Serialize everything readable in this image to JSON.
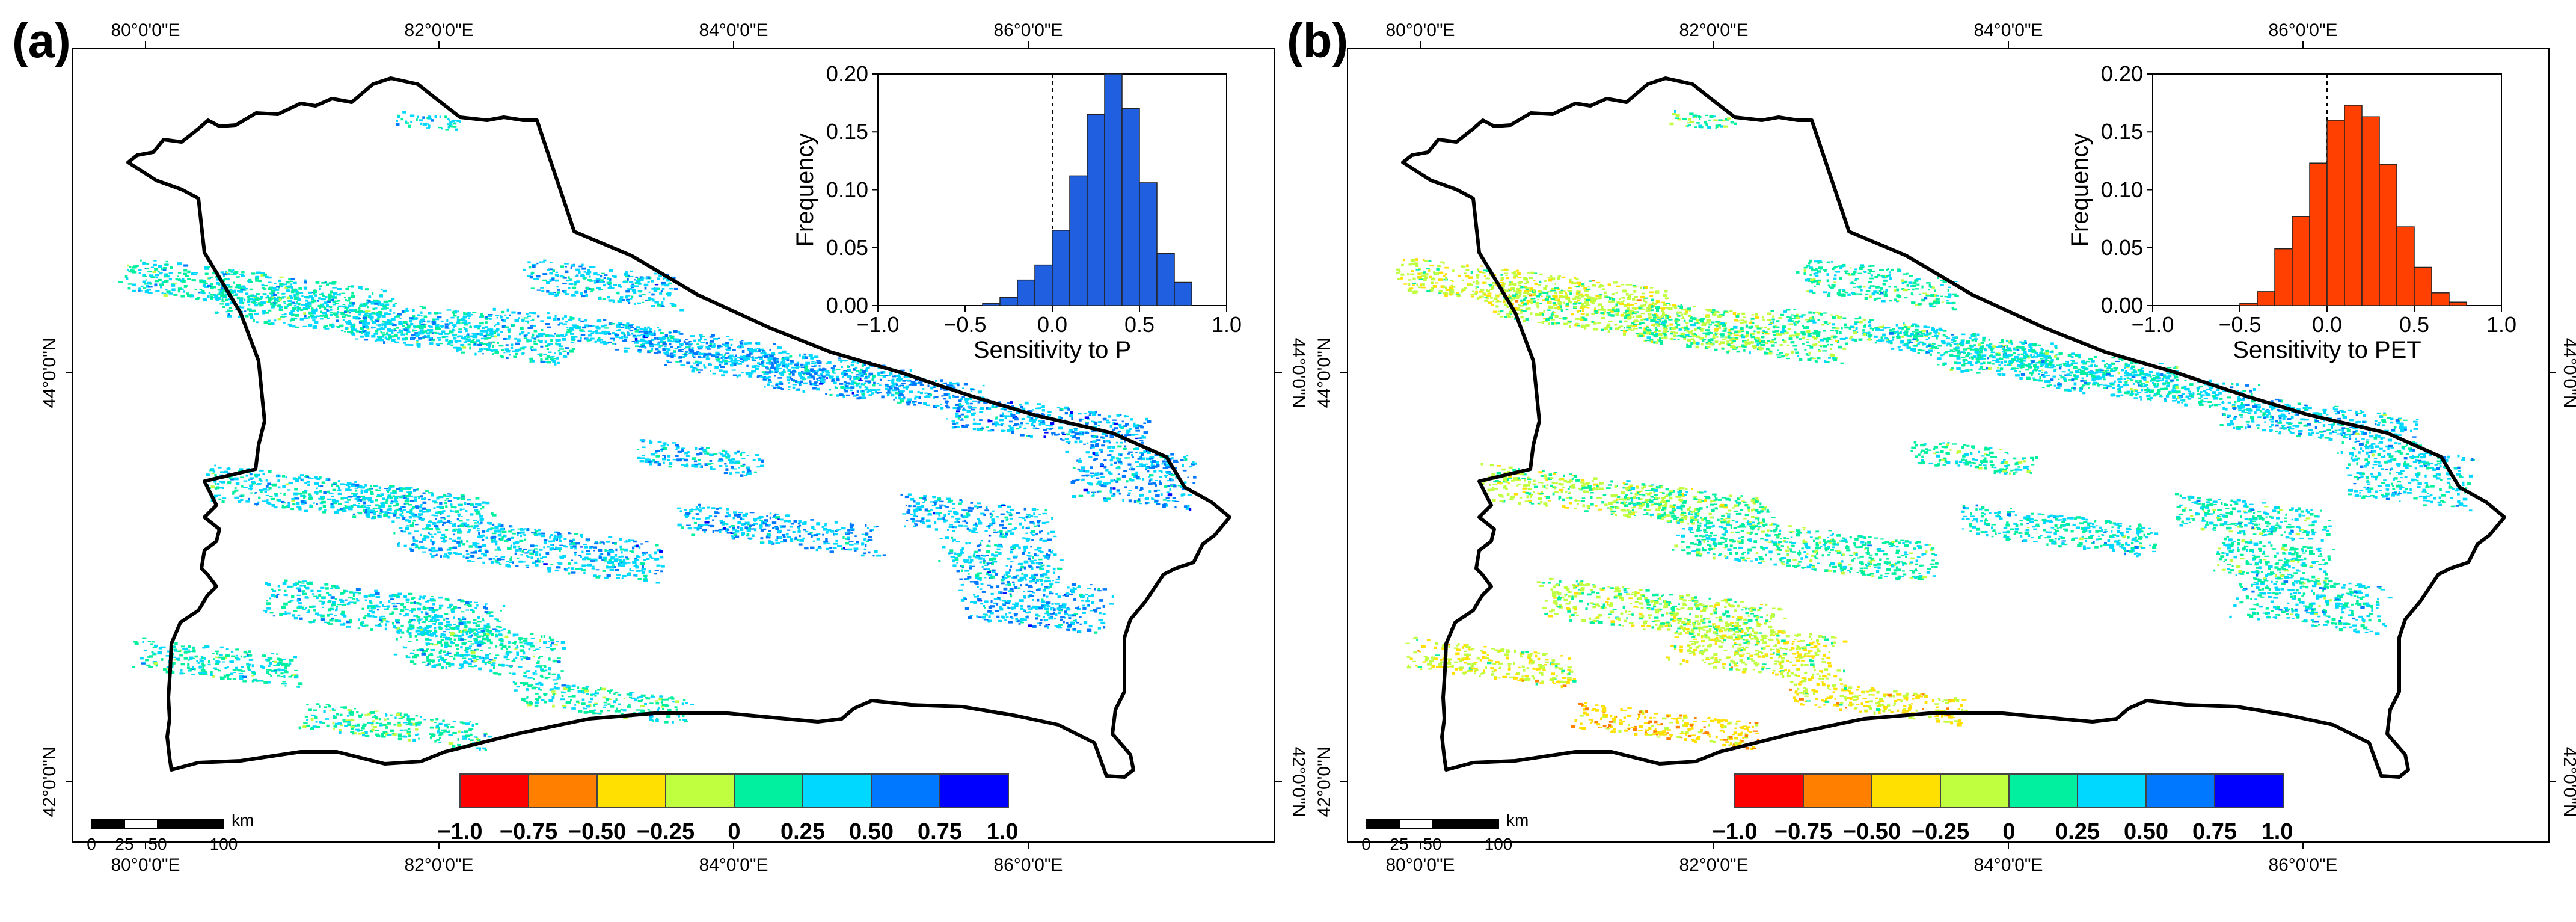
{
  "panels": [
    {
      "id": "a",
      "label": "(a)",
      "lon_ticks": [
        "80°0'0\"E",
        "82°0'0\"E",
        "84°0'0\"E",
        "86°0'0\"E"
      ],
      "lat_ticks": [
        "44°0'0\"N",
        "42°0'0\"N"
      ],
      "inset": {
        "xlabel": "Sensitivity to P",
        "ylabel": "Frequency",
        "x_ticks": [
          "−1.0",
          "−0.5",
          "0.0",
          "0.5",
          "1.0"
        ],
        "y_ticks": [
          "0.00",
          "0.05",
          "0.10",
          "0.15",
          "0.20"
        ],
        "bar_color": "#1f5fe0"
      }
    },
    {
      "id": "b",
      "label": "(b)",
      "lon_ticks": [
        "80°0'0\"E",
        "82°0'0\"E",
        "84°0'0\"E",
        "86°0'0\"E"
      ],
      "lat_ticks": [
        "44°0'0\"N",
        "42°0'0\"N"
      ],
      "inset": {
        "xlabel": "Sensitivity to PET",
        "ylabel": "Frequency",
        "x_ticks": [
          "−1.0",
          "−0.5",
          "0.0",
          "0.5",
          "1.0"
        ],
        "y_ticks": [
          "0.00",
          "0.05",
          "0.10",
          "0.15",
          "0.20"
        ],
        "bar_color": "#ff4000"
      }
    }
  ],
  "legend": {
    "labels": [
      "−1.0",
      "−0.75",
      "−0.50",
      "−0.25",
      "0",
      "0.25",
      "0.50",
      "0.75",
      "1.0"
    ],
    "colors": [
      "#ff0000",
      "#ff8000",
      "#ffe000",
      "#c0ff40",
      "#00f0a0",
      "#00d8ff",
      "#0078ff",
      "#0000ff"
    ]
  },
  "scalebar": {
    "labels": [
      "0",
      "25",
      "50",
      "100"
    ],
    "unit": "km"
  },
  "chart_data": [
    {
      "type": "bar",
      "title": "",
      "xlabel": "Sensitivity to P",
      "ylabel": "Frequency",
      "xlim": [
        -1.0,
        1.0
      ],
      "ylim": [
        0,
        0.2
      ],
      "bin_width": 0.1,
      "bin_left_edges": [
        -0.4,
        -0.3,
        -0.2,
        -0.1,
        0.0,
        0.1,
        0.2,
        0.3,
        0.4,
        0.5,
        0.6,
        0.7
      ],
      "values": [
        0.002,
        0.007,
        0.022,
        0.035,
        0.065,
        0.112,
        0.165,
        0.201,
        0.17,
        0.106,
        0.045,
        0.02
      ]
    },
    {
      "type": "bar",
      "title": "",
      "xlabel": "Sensitivity to PET",
      "ylabel": "Frequency",
      "xlim": [
        -1.0,
        1.0
      ],
      "ylim": [
        0,
        0.2
      ],
      "bin_width": 0.1,
      "bin_left_edges": [
        -0.5,
        -0.4,
        -0.3,
        -0.2,
        -0.1,
        0.0,
        0.1,
        0.2,
        0.3,
        0.4,
        0.5,
        0.6,
        0.7
      ],
      "values": [
        0.002,
        0.012,
        0.049,
        0.077,
        0.123,
        0.16,
        0.173,
        0.163,
        0.122,
        0.068,
        0.033,
        0.011,
        0.003
      ]
    }
  ]
}
